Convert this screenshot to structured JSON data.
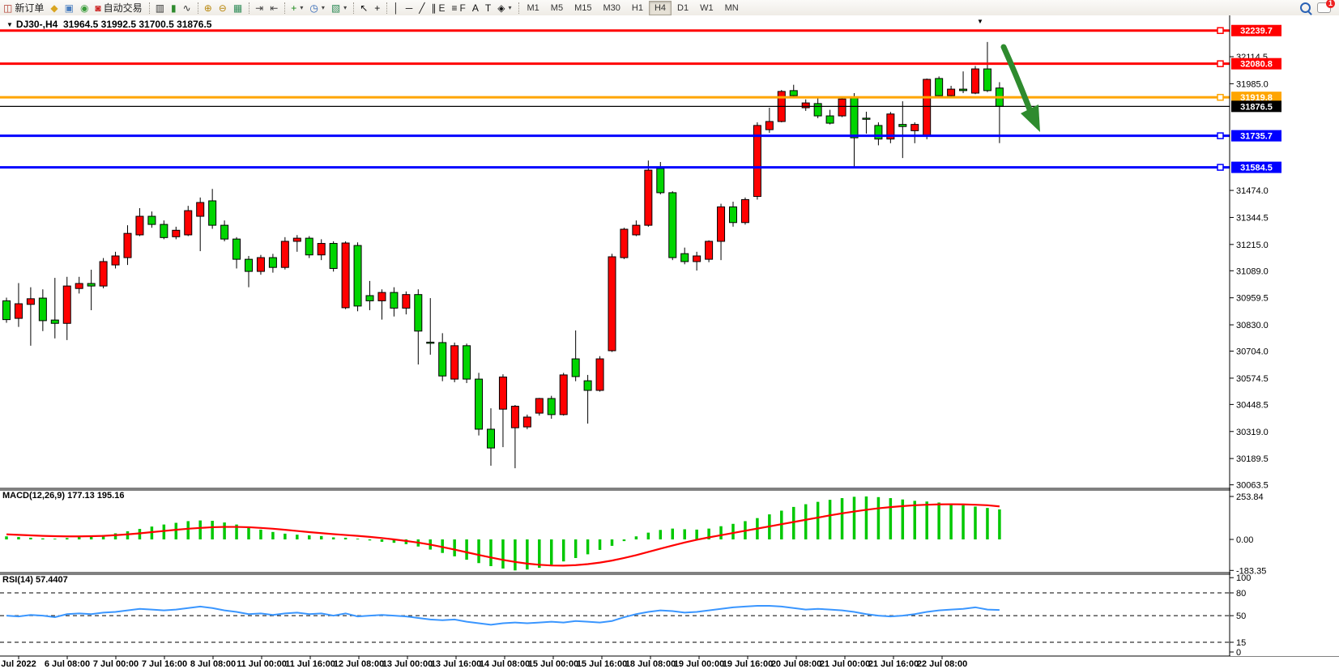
{
  "toolbar": {
    "buttons": [
      {
        "name": "new-order-button",
        "glyph": "◫",
        "glyph_color": "#b03a2e",
        "label": "新订单"
      },
      {
        "name": "chart-window-icon-button",
        "glyph": "◆",
        "glyph_color": "#d9a520",
        "label": ""
      },
      {
        "name": "market-watch-icon-button",
        "glyph": "▣",
        "glyph_color": "#4a7ebf",
        "label": ""
      },
      {
        "name": "signals-icon-button",
        "glyph": "◉",
        "glyph_color": "#3a9c3a",
        "label": ""
      },
      {
        "name": "autotrade-button",
        "glyph": "◙",
        "glyph_color": "#cc2222",
        "label": "自动交易"
      },
      {
        "sep": true
      },
      {
        "name": "bar-chart-type-button",
        "glyph": "▥",
        "glyph_color": "#333",
        "label": ""
      },
      {
        "name": "candlestick-type-button",
        "glyph": "▮",
        "glyph_color": "#2e8b2e",
        "label": ""
      },
      {
        "name": "line-chart-type-button",
        "glyph": "∿",
        "glyph_color": "#333",
        "label": ""
      },
      {
        "sep": true
      },
      {
        "name": "zoom-in-button",
        "glyph": "⊕",
        "glyph_color": "#b8860b",
        "label": ""
      },
      {
        "name": "zoom-out-button",
        "glyph": "⊖",
        "glyph_color": "#b8860b",
        "label": ""
      },
      {
        "name": "tile-windows-button",
        "glyph": "▦",
        "glyph_color": "#2e8b57",
        "label": ""
      },
      {
        "sep": true
      },
      {
        "name": "auto-scroll-button",
        "glyph": "⇥",
        "glyph_color": "#444",
        "label": ""
      },
      {
        "name": "chart-shift-button",
        "glyph": "⇤",
        "glyph_color": "#444",
        "label": ""
      },
      {
        "sep": true
      },
      {
        "name": "new-chart-button",
        "glyph": "+",
        "glyph_color": "#1d8a1d",
        "label": "",
        "dropdown": true
      },
      {
        "name": "periods-clock-button",
        "glyph": "◷",
        "glyph_color": "#2a62b5",
        "label": "",
        "dropdown": true
      },
      {
        "name": "templates-button",
        "glyph": "▧",
        "glyph_color": "#2e8b57",
        "label": "",
        "dropdown": true
      },
      {
        "sep": true
      },
      {
        "name": "cursor-tool-button",
        "glyph": "↖",
        "glyph_color": "#111",
        "label": ""
      },
      {
        "name": "crosshair-tool-button",
        "glyph": "+",
        "glyph_color": "#111",
        "label": ""
      },
      {
        "sep": true
      },
      {
        "name": "vertical-line-tool-button",
        "glyph": "│",
        "glyph_color": "#111",
        "label": ""
      },
      {
        "name": "horizontal-line-tool-button",
        "glyph": "─",
        "glyph_color": "#111",
        "label": ""
      },
      {
        "name": "trendline-tool-button",
        "glyph": "╱",
        "glyph_color": "#111",
        "label": ""
      },
      {
        "name": "channel-tool-button",
        "glyph": "∥",
        "glyph_color": "#111",
        "label": "E"
      },
      {
        "name": "fibonacci-tool-button",
        "glyph": "≡",
        "glyph_color": "#111",
        "label": "F"
      },
      {
        "name": "text-tool-button",
        "glyph": "A",
        "glyph_color": "#111",
        "label": ""
      },
      {
        "name": "label-tool-button",
        "glyph": "T",
        "glyph_color": "#111",
        "label": ""
      },
      {
        "name": "shapes-tool-button",
        "glyph": "◈",
        "glyph_color": "#111",
        "label": "",
        "dropdown": true
      },
      {
        "sep": true
      }
    ],
    "timeframes": [
      "M1",
      "M5",
      "M15",
      "M30",
      "H1",
      "H4",
      "D1",
      "W1",
      "MN"
    ],
    "active_timeframe": "H4",
    "chat_badge": "1"
  },
  "chart": {
    "title": "DJ30-,H4",
    "ohlc": "31964.5 31992.5 31700.5 31876.5",
    "symbol_period": "DJ30-,H4",
    "colors": {
      "bull": "#ff0000",
      "bear": "#00d500",
      "outline": "#000000",
      "background": "#ffffff"
    },
    "price_lines": [
      {
        "price": "32239.7",
        "value": 32239.7,
        "color": "#ff0000",
        "kind": "resistance-line"
      },
      {
        "price": "32080.8",
        "value": 32080.8,
        "color": "#ff0000",
        "kind": "resistance-line"
      },
      {
        "price": "31919.8",
        "value": 31919.8,
        "color": "#ffa500",
        "kind": "pivot-line"
      },
      {
        "price": "31876.5",
        "value": 31876.5,
        "color": "#000000",
        "kind": "current-price-line"
      },
      {
        "price": "31735.7",
        "value": 31735.7,
        "color": "#0000ff",
        "kind": "support-line"
      },
      {
        "price": "31584.5",
        "value": 31584.5,
        "color": "#0000ff",
        "kind": "support-line"
      }
    ],
    "axis_ticks": [
      32114.5,
      31985.0,
      31474.0,
      31344.5,
      31215.0,
      31089.0,
      30959.5,
      30830.0,
      30704.0,
      30574.5,
      30448.5,
      30319.0,
      30189.5,
      30063.5
    ],
    "time_labels": [
      "Jul 2022",
      "6 Jul 08:00",
      "7 Jul 00:00",
      "7 Jul 16:00",
      "8 Jul 08:00",
      "11 Jul 00:00",
      "11 Jul 16:00",
      "12 Jul 08:00",
      "13 Jul 00:00",
      "13 Jul 16:00",
      "14 Jul 08:00",
      "15 Jul 00:00",
      "15 Jul 16:00",
      "18 Jul 08:00",
      "19 Jul 00:00",
      "19 Jul 16:00",
      "20 Jul 08:00",
      "21 Jul 00:00",
      "21 Jul 16:00",
      "22 Jul 08:00"
    ],
    "arrow": {
      "color": "#2e8b2e",
      "desc": "sell-direction-arrow"
    },
    "candles": [
      [
        30945,
        30960,
        30840,
        30855
      ],
      [
        30861,
        31030,
        30820,
        30931
      ],
      [
        30928,
        31010,
        30730,
        30955
      ],
      [
        30958,
        31000,
        30800,
        30850
      ],
      [
        30853,
        31055,
        30765,
        30837
      ],
      [
        30837,
        31060,
        30757,
        31016
      ],
      [
        31004,
        31060,
        30980,
        31028
      ],
      [
        31028,
        31094,
        30900,
        31016
      ],
      [
        31016,
        31150,
        31005,
        31133
      ],
      [
        31117,
        31180,
        31100,
        31160
      ],
      [
        31152,
        31307,
        31117,
        31268
      ],
      [
        31261,
        31389,
        31255,
        31350
      ],
      [
        31350,
        31373,
        31295,
        31311
      ],
      [
        31311,
        31330,
        31240,
        31248
      ],
      [
        31252,
        31300,
        31240,
        31283
      ],
      [
        31261,
        31400,
        31255,
        31377
      ],
      [
        31350,
        31440,
        31183,
        31416
      ],
      [
        31424,
        31481,
        31290,
        31307
      ],
      [
        31307,
        31330,
        31230,
        31241
      ],
      [
        31241,
        31250,
        31100,
        31144
      ],
      [
        31144,
        31160,
        31010,
        31086
      ],
      [
        31086,
        31165,
        31070,
        31152
      ],
      [
        31152,
        31170,
        31080,
        31105
      ],
      [
        31105,
        31250,
        31095,
        31230
      ],
      [
        31230,
        31260,
        31180,
        31245
      ],
      [
        31245,
        31255,
        31150,
        31165
      ],
      [
        31165,
        31240,
        31140,
        31220
      ],
      [
        31220,
        31230,
        31085,
        31100
      ],
      [
        30912,
        31230,
        30905,
        31222
      ],
      [
        31210,
        31225,
        30895,
        30920
      ],
      [
        30970,
        31040,
        30900,
        30945
      ],
      [
        30945,
        31000,
        30855,
        30985
      ],
      [
        30985,
        31010,
        30870,
        30910
      ],
      [
        30910,
        30990,
        30880,
        30975
      ],
      [
        30975,
        31000,
        30640,
        30800
      ],
      [
        30747,
        30958,
        30687,
        30745
      ],
      [
        30745,
        30790,
        30560,
        30585
      ],
      [
        30570,
        30745,
        30555,
        30730
      ],
      [
        30730,
        30740,
        30551,
        30570
      ],
      [
        30570,
        30600,
        30300,
        30330
      ],
      [
        30330,
        30430,
        30155,
        30240
      ],
      [
        30426,
        30593,
        30244,
        30580
      ],
      [
        30337,
        30446,
        30143,
        30440
      ],
      [
        30341,
        30400,
        30330,
        30388
      ],
      [
        30407,
        30480,
        30395,
        30477
      ],
      [
        30477,
        30490,
        30380,
        30400
      ],
      [
        30400,
        30600,
        30395,
        30590
      ],
      [
        30667,
        30803,
        30560,
        30582
      ],
      [
        30562,
        30590,
        30357,
        30516
      ],
      [
        30516,
        30680,
        30510,
        30667
      ],
      [
        30706,
        31170,
        30700,
        31156
      ],
      [
        31152,
        31295,
        31145,
        31288
      ],
      [
        31261,
        31330,
        31255,
        31307
      ],
      [
        31307,
        31617,
        31300,
        31571
      ],
      [
        31579,
        31610,
        31455,
        31463
      ],
      [
        31463,
        31470,
        31140,
        31152
      ],
      [
        31171,
        31200,
        31120,
        31133
      ],
      [
        31133,
        31180,
        31090,
        31160
      ],
      [
        31144,
        31235,
        31130,
        31230
      ],
      [
        31230,
        31410,
        31140,
        31395
      ],
      [
        31395,
        31420,
        31300,
        31320
      ],
      [
        31320,
        31440,
        31310,
        31430
      ],
      [
        31445,
        31800,
        31430,
        31785
      ],
      [
        31765,
        31870,
        31750,
        31804
      ],
      [
        31804,
        31955,
        31800,
        31948
      ],
      [
        31952,
        31980,
        31920,
        31928
      ],
      [
        31870,
        31910,
        31855,
        31893
      ],
      [
        31890,
        31920,
        31820,
        31831
      ],
      [
        31831,
        31860,
        31790,
        31796
      ],
      [
        31831,
        31920,
        31825,
        31912
      ],
      [
        31920,
        31940,
        31583,
        31726
      ],
      [
        31820,
        31851,
        31746,
        31818
      ],
      [
        31785,
        31800,
        31690,
        31720
      ],
      [
        31720,
        31850,
        31700,
        31840
      ],
      [
        31790,
        31901,
        31629,
        31780
      ],
      [
        31760,
        31800,
        31700,
        31790
      ],
      [
        31738,
        32010,
        31719,
        32006
      ],
      [
        32010,
        32020,
        31920,
        31928
      ],
      [
        31928,
        31975,
        31920,
        31959
      ],
      [
        31959,
        32044,
        31940,
        31952
      ],
      [
        31940,
        32070,
        31935,
        32056
      ],
      [
        32056,
        32185,
        31945,
        31952
      ],
      [
        31964.5,
        31992.5,
        31700.5,
        31876.5
      ]
    ]
  },
  "macd": {
    "label": "MACD(12,26,9)",
    "value": "177.13",
    "signal_value": "195.16",
    "scale": [
      "253.84",
      "0.00",
      "-183.35"
    ],
    "hist_color": "#00c800",
    "signal_color": "#ff0000",
    "histogram": [
      18,
      14,
      10,
      6,
      4,
      8,
      14,
      18,
      26,
      36,
      48,
      62,
      76,
      88,
      98,
      108,
      112,
      110,
      100,
      88,
      74,
      58,
      44,
      34,
      28,
      24,
      20,
      12,
      10,
      4,
      -6,
      -14,
      -20,
      -28,
      -42,
      -60,
      -80,
      -100,
      -120,
      -140,
      -158,
      -172,
      -183.35,
      -178,
      -168,
      -150,
      -130,
      -110,
      -88,
      -62,
      -38,
      -10,
      18,
      40,
      56,
      64,
      60,
      58,
      64,
      78,
      92,
      108,
      126,
      148,
      170,
      192,
      208,
      222,
      234,
      244,
      252,
      253.84,
      250,
      244,
      236,
      228,
      224,
      218,
      210,
      202,
      194,
      186,
      177.13
    ],
    "signal": [
      30,
      27,
      24,
      21,
      19,
      18,
      18,
      19,
      21,
      25,
      30,
      36,
      43,
      50,
      57,
      63,
      68,
      72,
      74,
      74,
      72,
      68,
      63,
      57,
      50,
      43,
      37,
      31,
      26,
      21,
      15,
      8,
      0,
      -9,
      -19,
      -31,
      -45,
      -60,
      -76,
      -92,
      -107,
      -121,
      -133,
      -143,
      -150,
      -154,
      -155,
      -152,
      -146,
      -137,
      -125,
      -110,
      -93,
      -74,
      -55,
      -36,
      -18,
      -2,
      12,
      25,
      38,
      51,
      64,
      77,
      90,
      103,
      116,
      129,
      142,
      154,
      165,
      175,
      184,
      191,
      197,
      202,
      205,
      207,
      208,
      207,
      205,
      202,
      195.16
    ]
  },
  "rsi": {
    "label": "RSI(14)",
    "value": "57.4407",
    "scale": [
      "100",
      "80",
      "50",
      "15",
      "0"
    ],
    "levels": [
      80,
      50,
      15
    ],
    "line_color": "#3a96ff",
    "line": [
      50,
      49,
      51,
      50,
      48,
      52,
      53,
      52,
      54,
      55,
      57,
      59,
      58,
      57,
      58,
      60,
      62,
      60,
      57,
      55,
      52,
      53,
      51,
      53,
      54,
      52,
      53,
      50,
      53,
      49,
      50,
      51,
      50,
      49,
      47,
      45,
      44,
      45,
      42,
      40,
      38,
      40,
      41,
      40,
      41,
      42,
      41,
      43,
      42,
      41,
      43,
      48,
      52,
      55,
      57,
      56,
      54,
      55,
      57,
      59,
      61,
      62,
      63,
      63,
      62,
      60,
      58,
      59,
      58,
      57,
      55,
      52,
      50,
      49,
      50,
      52,
      55,
      57,
      58,
      59,
      61,
      58,
      57.44
    ]
  }
}
